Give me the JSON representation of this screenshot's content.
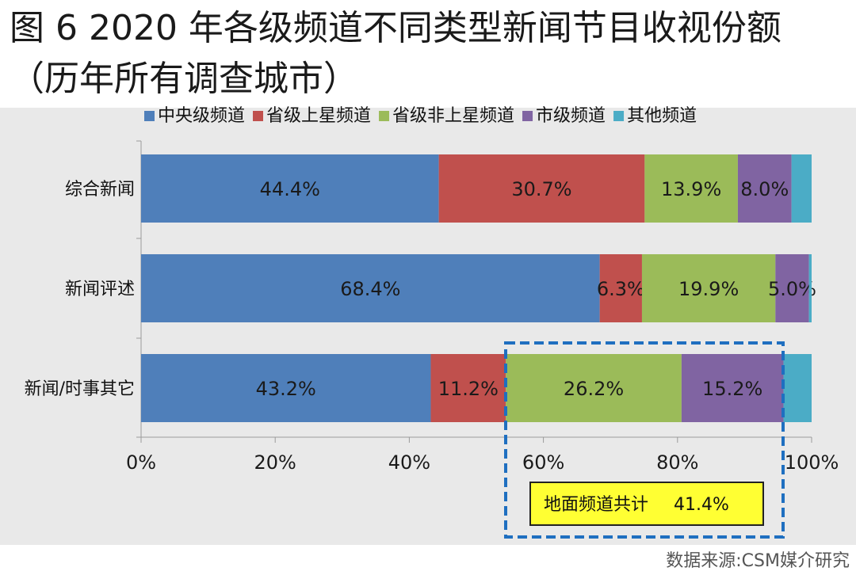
{
  "title": "图 6 2020 年各级频道不同类型新闻节目收视份额（历年所有调查城市）",
  "source": "数据来源:CSM媒介研究",
  "annotation": {
    "label": "地面频道共计",
    "value": "41.4%"
  },
  "colors": {
    "series": [
      "#4f7fba",
      "#c0504d",
      "#9bbb59",
      "#8064a2",
      "#4bacc6"
    ],
    "annotation_box_fill": "#ffff33",
    "annotation_dash": "#1f6fc0"
  },
  "chart_data": {
    "type": "bar",
    "orientation": "horizontal",
    "stacked": true,
    "legend_position": "top",
    "categories": [
      "综合新闻",
      "新闻评述",
      "新闻/时事其它"
    ],
    "series": [
      {
        "name": "中央级频道",
        "values": [
          44.4,
          68.4,
          43.2
        ],
        "labels": [
          "44.4%",
          "68.4%",
          "43.2%"
        ]
      },
      {
        "name": "省级上星频道",
        "values": [
          30.7,
          6.3,
          11.2
        ],
        "labels": [
          "30.7%",
          "6.3%",
          "11.2%"
        ]
      },
      {
        "name": "省级非上星频道",
        "values": [
          13.9,
          19.9,
          26.2
        ],
        "labels": [
          "13.9%",
          "19.9%",
          "26.2%"
        ]
      },
      {
        "name": "市级频道",
        "values": [
          8.0,
          5.0,
          15.2
        ],
        "labels": [
          "8.0%",
          "5.0%",
          "15.2%"
        ]
      },
      {
        "name": "其他频道",
        "values": [
          3.0,
          0.4,
          4.2
        ],
        "labels": [
          "",
          "",
          ""
        ]
      }
    ],
    "xlim": [
      0,
      100
    ],
    "xticks": [
      "0%",
      "20%",
      "40%",
      "60%",
      "80%",
      "100%"
    ],
    "grid": false
  }
}
